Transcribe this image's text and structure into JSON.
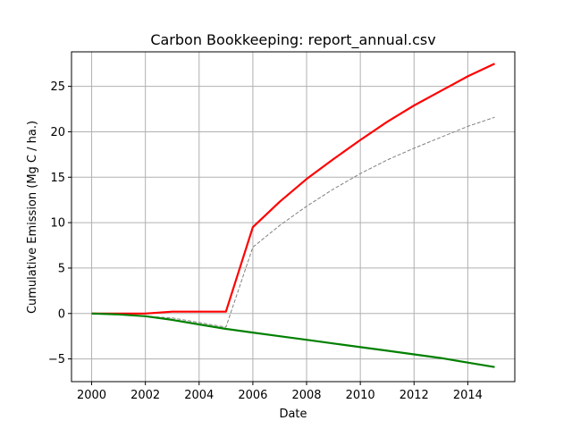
{
  "chart_data": {
    "type": "line",
    "title": "Carbon Bookkeeping: report_annual.csv",
    "xlabel": "Date",
    "ylabel": "Cumulative Emission (Mg C / ha.)",
    "xlim": [
      1999.25,
      2015.75
    ],
    "ylim": [
      -7.5,
      28.8
    ],
    "grid": true,
    "x_ticks": [
      2000,
      2002,
      2004,
      2006,
      2008,
      2010,
      2012,
      2014
    ],
    "x_tick_labels": [
      "2000",
      "2002",
      "2004",
      "2006",
      "2008",
      "2010",
      "2012",
      "2014"
    ],
    "y_ticks": [
      -5,
      0,
      5,
      10,
      15,
      20,
      25
    ],
    "y_tick_labels": [
      "−5",
      "0",
      "5",
      "10",
      "15",
      "20",
      "25"
    ],
    "x": [
      2000,
      2001,
      2002,
      2003,
      2004,
      2005,
      2006,
      2007,
      2008,
      2009,
      2010,
      2011,
      2012,
      2013,
      2014,
      2015
    ],
    "series": [
      {
        "color": "#ff0000",
        "style": "solid",
        "values": [
          0,
          0,
          0,
          0.2,
          0.2,
          0.2,
          9.5,
          12.3,
          14.8,
          17.0,
          19.1,
          21.1,
          22.9,
          24.5,
          26.1,
          27.5
        ]
      },
      {
        "color": "#808080",
        "style": "dashed",
        "values": [
          0,
          -0.1,
          -0.3,
          -0.5,
          -1.0,
          -1.5,
          7.3,
          9.7,
          11.8,
          13.7,
          15.4,
          16.9,
          18.2,
          19.4,
          20.6,
          21.6
        ]
      },
      {
        "color": "#008000",
        "style": "solid",
        "values": [
          0,
          -0.1,
          -0.3,
          -0.7,
          -1.2,
          -1.7,
          -2.1,
          -2.5,
          -2.9,
          -3.3,
          -3.7,
          -4.1,
          -4.5,
          -4.9,
          -5.4,
          -5.9
        ]
      }
    ]
  }
}
